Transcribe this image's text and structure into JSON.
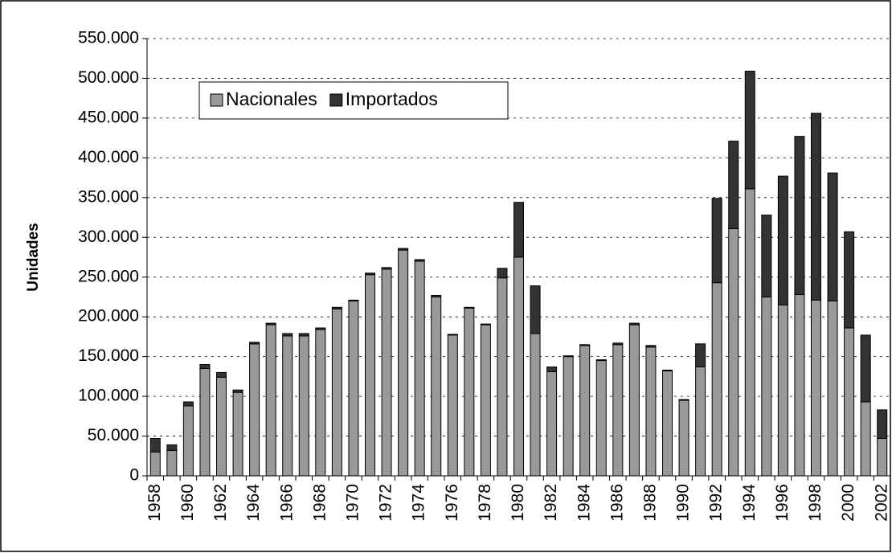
{
  "chart_data": {
    "type": "stacked_bar",
    "y_label": "Unidades",
    "categories": [
      "1958",
      null,
      "1960",
      null,
      "1962",
      null,
      "1964",
      null,
      "1966",
      null,
      "1968",
      null,
      "1970",
      null,
      "1972",
      null,
      "1974",
      null,
      "1976",
      null,
      "1978",
      null,
      "1980",
      null,
      "1982",
      null,
      "1984",
      null,
      "1986",
      null,
      "1988",
      null,
      "1990",
      null,
      "1992",
      null,
      "1994",
      null,
      "1996",
      null,
      "1998",
      null,
      "2000",
      null,
      "2002"
    ],
    "series": [
      {
        "name": "Nacionales",
        "color": "#999999",
        "values": [
          30000,
          32000,
          88000,
          135000,
          124000,
          105000,
          166000,
          190000,
          176000,
          176000,
          184000,
          210000,
          220000,
          253000,
          260000,
          284000,
          270000,
          225000,
          177000,
          211000,
          190000,
          249000,
          275000,
          179000,
          131000,
          150000,
          164000,
          145000,
          165000,
          190000,
          162000,
          132000,
          95000,
          137000,
          243000,
          311000,
          361000,
          225000,
          215000,
          228000,
          221000,
          220000,
          186000,
          93000,
          47000
        ]
      },
      {
        "name": "Importados",
        "color": "#333333",
        "values": [
          17000,
          7000,
          5000,
          5000,
          6000,
          3000,
          2000,
          2000,
          3000,
          3000,
          2000,
          2000,
          1000,
          2000,
          2000,
          2000,
          2000,
          2000,
          1000,
          1000,
          1000,
          12000,
          69000,
          60000,
          6000,
          1000,
          1000,
          1000,
          2000,
          2000,
          2000,
          1000,
          1000,
          29000,
          106000,
          110000,
          148000,
          103000,
          162000,
          199000,
          235000,
          161000,
          121000,
          84000,
          36000
        ]
      }
    ],
    "ylim": [
      0,
      550000
    ],
    "yticks": [
      0,
      {
        "value": 50000,
        "label": "50.000"
      },
      {
        "value": 100000,
        "label": "100.000"
      },
      {
        "value": 150000,
        "label": "150.000"
      },
      {
        "value": 200000,
        "label": "200.000"
      },
      {
        "value": 250000,
        "label": "250.000"
      },
      {
        "value": 300000,
        "label": "300.000"
      },
      {
        "value": 350000,
        "label": "350.000"
      },
      {
        "value": 400000,
        "label": "400.000"
      },
      {
        "value": 450000,
        "label": "450.000"
      },
      {
        "value": 500000,
        "label": "500.000"
      },
      {
        "value": 550000,
        "label": "550.000"
      }
    ],
    "grid": true
  }
}
